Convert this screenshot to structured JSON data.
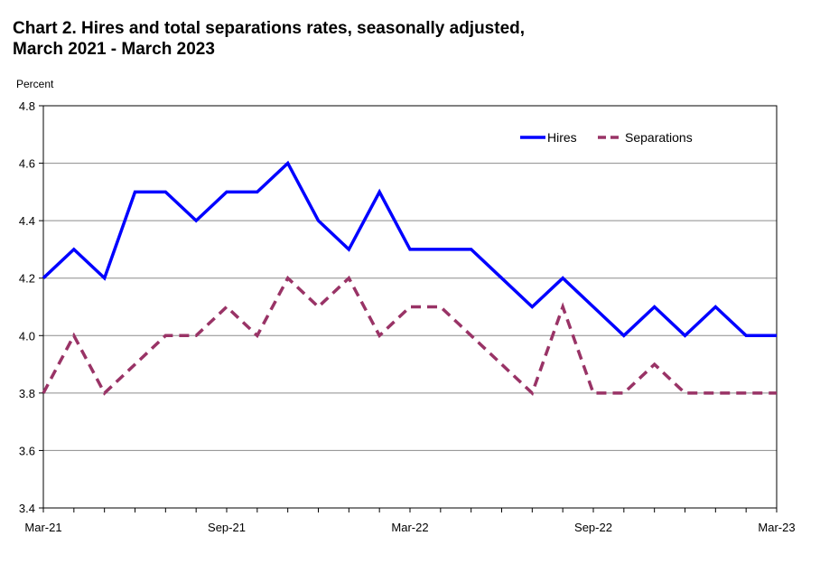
{
  "title_line1": "Chart 2. Hires and total separations rates, seasonally adjusted,",
  "title_line2": "March 2021 - March 2023",
  "chart_data": {
    "type": "line",
    "title": "Chart 2. Hires and total separations rates, seasonally adjusted, March 2021 - March 2023",
    "ylabel": "Percent",
    "xlabel": "",
    "ylim": [
      3.4,
      4.8
    ],
    "yticks": [
      "3.4",
      "3.6",
      "3.8",
      "4.0",
      "4.2",
      "4.4",
      "4.6",
      "4.8"
    ],
    "x": [
      "Mar-21",
      "Apr-21",
      "May-21",
      "Jun-21",
      "Jul-21",
      "Aug-21",
      "Sep-21",
      "Oct-21",
      "Nov-21",
      "Dec-21",
      "Jan-22",
      "Feb-22",
      "Mar-22",
      "Apr-22",
      "May-22",
      "Jun-22",
      "Jul-22",
      "Aug-22",
      "Sep-22",
      "Oct-22",
      "Nov-22",
      "Dec-22",
      "Jan-23",
      "Feb-23",
      "Mar-23"
    ],
    "xtick_labels": [
      "Mar-21",
      "Sep-21",
      "Mar-22",
      "Sep-22",
      "Mar-23"
    ],
    "grid": "horizontal",
    "legend_position": "top-right",
    "series": [
      {
        "name": "Hires",
        "color": "#0000FF",
        "style": "solid",
        "values": [
          4.2,
          4.3,
          4.2,
          4.5,
          4.5,
          4.4,
          4.5,
          4.5,
          4.6,
          4.4,
          4.3,
          4.5,
          4.3,
          4.3,
          4.3,
          4.2,
          4.1,
          4.2,
          4.1,
          4.0,
          4.1,
          4.0,
          4.1,
          4.0,
          4.0
        ]
      },
      {
        "name": "Separations",
        "color": "#993366",
        "style": "dashed",
        "values": [
          3.8,
          4.0,
          3.8,
          3.9,
          4.0,
          4.0,
          4.1,
          4.0,
          4.2,
          4.1,
          4.2,
          4.0,
          4.1,
          4.1,
          4.0,
          3.9,
          3.8,
          4.1,
          3.8,
          3.8,
          3.9,
          3.8,
          3.8,
          3.8,
          3.8
        ]
      }
    ]
  }
}
